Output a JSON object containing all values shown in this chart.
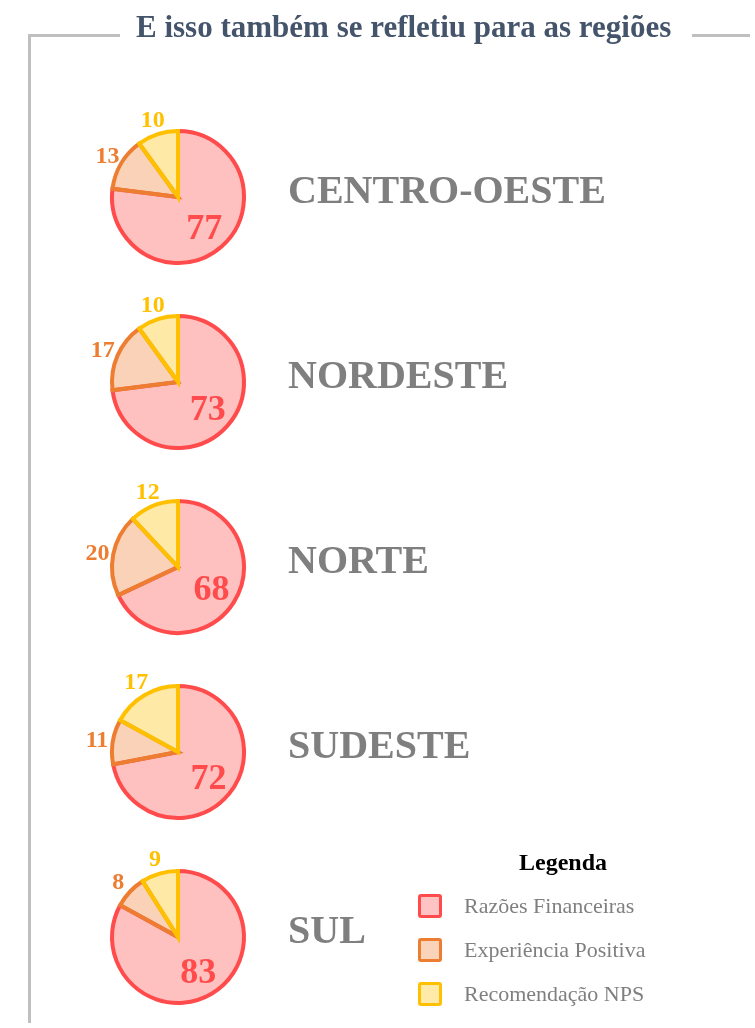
{
  "chart_data": [
    {
      "type": "pie",
      "title": "CENTRO-OESTE",
      "annotations": [
        "E isso também se refletiu para as regiões"
      ],
      "categories": [
        null,
        null,
        null
      ],
      "values": [
        77,
        13,
        10
      ],
      "colors": [
        "#ff4b4b",
        "#ed7d31",
        "#ffc000"
      ],
      "data_labels": true
    },
    {
      "type": "pie",
      "title": "NORDESTE",
      "categories": [
        null,
        null,
        null
      ],
      "values": [
        73,
        17,
        10
      ],
      "colors": [
        "#ff4b4b",
        "#ed7d31",
        "#ffc000"
      ],
      "data_labels": true
    },
    {
      "type": "pie",
      "title": "NORTE",
      "categories": [
        null,
        null,
        null
      ],
      "values": [
        68,
        20,
        12
      ],
      "colors": [
        "#ff4b4b",
        "#ed7d31",
        "#ffc000"
      ],
      "data_labels": true
    },
    {
      "type": "pie",
      "title": "SUDESTE",
      "categories": [
        null,
        null,
        null
      ],
      "values": [
        72,
        11,
        17
      ],
      "colors": [
        "#ff4b4b",
        "#ed7d31",
        "#ffc000"
      ],
      "data_labels": true
    },
    {
      "type": "pie",
      "title": "SUL",
      "categories": [
        "Razões Financeiras",
        "Experiência Positiva",
        "Recomendação NPS"
      ],
      "values": [
        83,
        8,
        9
      ],
      "colors": [
        "#ff4b4b",
        "#ed7d31",
        "#ffc000"
      ],
      "data_labels": true,
      "legend": "right",
      "legend_title": "Legenda"
    }
  ]
}
